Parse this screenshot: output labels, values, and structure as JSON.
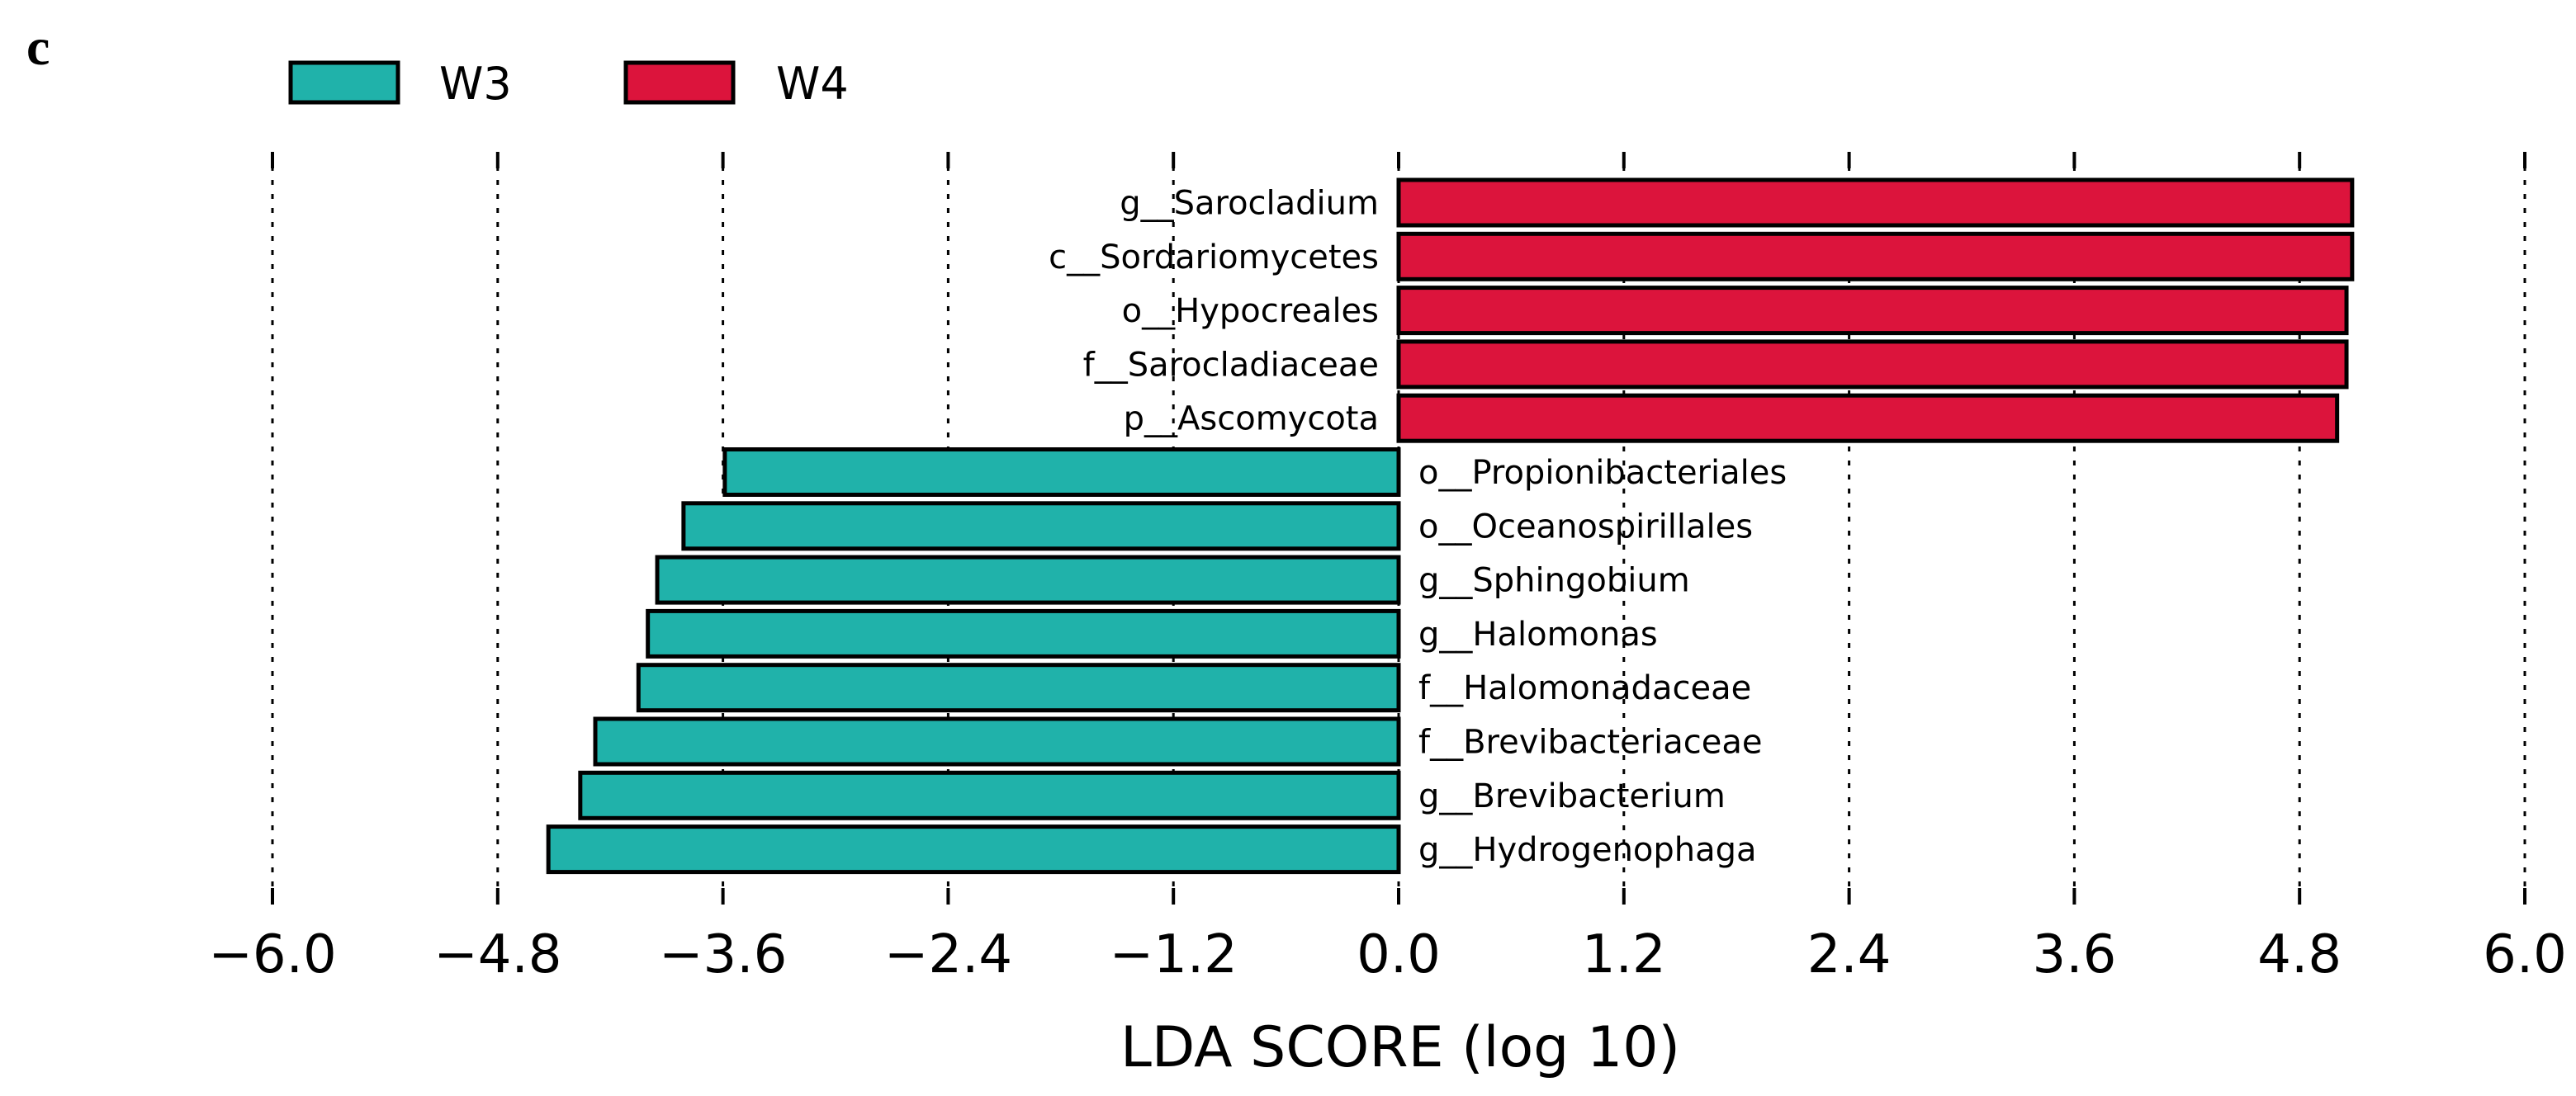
{
  "panel_label": "c",
  "colors": {
    "W3": "#20b2aa",
    "W4": "#dc143c"
  },
  "chart_data": {
    "type": "bar",
    "orientation": "horizontal",
    "title": "",
    "xlabel": "LDA SCORE (log 10)",
    "xlim": [
      -6.0,
      6.0
    ],
    "xticks": [
      -6.0,
      -4.8,
      -3.6,
      -2.4,
      -1.2,
      0.0,
      1.2,
      2.4,
      3.6,
      4.8,
      6.0
    ],
    "xtick_labels": [
      "−6.0",
      "−4.8",
      "−3.6",
      "−2.4",
      "−1.2",
      "0.0",
      "1.2",
      "2.4",
      "3.6",
      "4.8",
      "6.0"
    ],
    "grid": true,
    "legend": {
      "position": "top-left",
      "entries": [
        "W3",
        "W4"
      ]
    },
    "bars": [
      {
        "label": "g__Sarocladium",
        "value": 5.08,
        "group": "W4"
      },
      {
        "label": "c__Sordariomycetes",
        "value": 5.08,
        "group": "W4"
      },
      {
        "label": "o__Hypocreales",
        "value": 5.05,
        "group": "W4"
      },
      {
        "label": "f__Sarocladiaceae",
        "value": 5.05,
        "group": "W4"
      },
      {
        "label": "p__Ascomycota",
        "value": 5.0,
        "group": "W4"
      },
      {
        "label": "o__Propionibacteriales",
        "value": -3.59,
        "group": "W3"
      },
      {
        "label": "o__Oceanospirillales",
        "value": -3.81,
        "group": "W3"
      },
      {
        "label": "g__Sphingobium",
        "value": -3.95,
        "group": "W3"
      },
      {
        "label": "g__Halomonas",
        "value": -4.0,
        "group": "W3"
      },
      {
        "label": "f__Halomonadaceae",
        "value": -4.05,
        "group": "W3"
      },
      {
        "label": "f__Brevibacteriaceae",
        "value": -4.28,
        "group": "W3"
      },
      {
        "label": "g__Brevibacterium",
        "value": -4.36,
        "group": "W3"
      },
      {
        "label": "g__Hydrogenophaga",
        "value": -4.53,
        "group": "W3"
      }
    ]
  }
}
